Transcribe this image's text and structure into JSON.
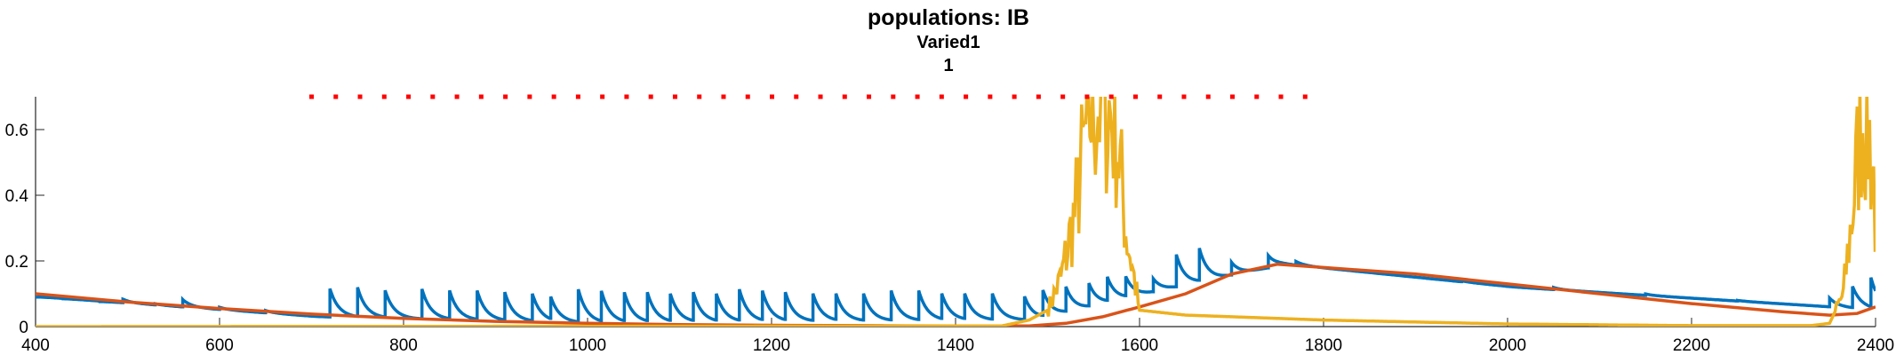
{
  "chart_data": {
    "type": "line",
    "title": "populations: IB",
    "subtitle_lines": [
      "Varied1",
      "1"
    ],
    "xlabel": "",
    "ylabel": "",
    "xlim": [
      400,
      2400
    ],
    "ylim": [
      0,
      0.7
    ],
    "x_ticks": [
      400,
      600,
      800,
      1000,
      1200,
      1400,
      1600,
      1800,
      2000,
      2200,
      2400
    ],
    "x_tick_labels": [
      "400",
      "600",
      "800",
      "1000",
      "1200",
      "1400",
      "1600",
      "1800",
      "2000",
      "2200",
      "2400"
    ],
    "y_ticks": [
      0,
      0.2,
      0.4,
      0.6
    ],
    "y_tick_labels": [
      "0",
      "0.2",
      "0.4",
      "0.6"
    ],
    "grid": false,
    "legend": "none",
    "series": [
      {
        "color": "#0072BD",
        "style": "spiky-line",
        "baseline": [
          [
            400,
            0.09
          ],
          [
            700,
            0.03
          ],
          [
            1000,
            0.01
          ],
          [
            1480,
            0.02
          ],
          [
            1600,
            0.1
          ],
          [
            1750,
            0.19
          ],
          [
            2000,
            0.12
          ],
          [
            2400,
            0.05
          ]
        ],
        "spikes": [
          [
            430,
            0.085
          ],
          [
            470,
            0.075
          ],
          [
            495,
            0.085
          ],
          [
            530,
            0.07
          ],
          [
            560,
            0.085
          ],
          [
            600,
            0.06
          ],
          [
            650,
            0.05
          ],
          [
            720,
            0.125
          ],
          [
            750,
            0.13
          ],
          [
            780,
            0.12
          ],
          [
            820,
            0.125
          ],
          [
            850,
            0.12
          ],
          [
            880,
            0.12
          ],
          [
            910,
            0.115
          ],
          [
            940,
            0.11
          ],
          [
            960,
            0.1
          ],
          [
            990,
            0.125
          ],
          [
            1015,
            0.12
          ],
          [
            1040,
            0.115
          ],
          [
            1065,
            0.115
          ],
          [
            1090,
            0.11
          ],
          [
            1115,
            0.115
          ],
          [
            1140,
            0.11
          ],
          [
            1165,
            0.125
          ],
          [
            1190,
            0.12
          ],
          [
            1215,
            0.115
          ],
          [
            1245,
            0.11
          ],
          [
            1270,
            0.11
          ],
          [
            1300,
            0.11
          ],
          [
            1330,
            0.12
          ],
          [
            1360,
            0.12
          ],
          [
            1385,
            0.11
          ],
          [
            1410,
            0.11
          ],
          [
            1440,
            0.11
          ],
          [
            1475,
            0.1
          ],
          [
            1495,
            0.12
          ],
          [
            1520,
            0.13
          ],
          [
            1545,
            0.14
          ],
          [
            1565,
            0.16
          ],
          [
            1585,
            0.16
          ],
          [
            1615,
            0.15
          ],
          [
            1640,
            0.23
          ],
          [
            1665,
            0.25
          ],
          [
            1700,
            0.2
          ],
          [
            1740,
            0.22
          ],
          [
            1770,
            0.2
          ],
          [
            1950,
            0.14
          ],
          [
            2050,
            0.12
          ],
          [
            2150,
            0.1
          ],
          [
            2250,
            0.08
          ],
          [
            2350,
            0.09
          ],
          [
            2375,
            0.13
          ],
          [
            2395,
            0.16
          ]
        ]
      },
      {
        "color": "#D95319",
        "style": "smooth-line",
        "points": [
          [
            400,
            0.1
          ],
          [
            500,
            0.075
          ],
          [
            600,
            0.055
          ],
          [
            700,
            0.038
          ],
          [
            800,
            0.025
          ],
          [
            900,
            0.016
          ],
          [
            1000,
            0.01
          ],
          [
            1100,
            0.006
          ],
          [
            1200,
            0.004
          ],
          [
            1300,
            0.003
          ],
          [
            1400,
            0.002
          ],
          [
            1480,
            0.002
          ],
          [
            1520,
            0.01
          ],
          [
            1560,
            0.03
          ],
          [
            1600,
            0.06
          ],
          [
            1650,
            0.1
          ],
          [
            1700,
            0.16
          ],
          [
            1750,
            0.19
          ],
          [
            1800,
            0.18
          ],
          [
            1900,
            0.16
          ],
          [
            2000,
            0.13
          ],
          [
            2100,
            0.1
          ],
          [
            2200,
            0.07
          ],
          [
            2300,
            0.045
          ],
          [
            2350,
            0.035
          ],
          [
            2380,
            0.04
          ],
          [
            2400,
            0.06
          ]
        ]
      },
      {
        "color": "#EDB120",
        "style": "noisy-line",
        "points": [
          [
            400,
            0.0
          ],
          [
            1450,
            0.002
          ],
          [
            1480,
            0.02
          ],
          [
            1500,
            0.05
          ],
          [
            1515,
            0.15
          ],
          [
            1530,
            0.35
          ],
          [
            1545,
            0.65
          ],
          [
            1560,
            0.7
          ],
          [
            1575,
            0.6
          ],
          [
            1585,
            0.3
          ],
          [
            1600,
            0.05
          ],
          [
            1650,
            0.035
          ],
          [
            1800,
            0.02
          ],
          [
            2000,
            0.008
          ],
          [
            2200,
            0.003
          ],
          [
            2330,
            0.003
          ],
          [
            2350,
            0.01
          ],
          [
            2365,
            0.1
          ],
          [
            2375,
            0.35
          ],
          [
            2385,
            0.65
          ],
          [
            2392,
            0.6
          ],
          [
            2398,
            0.45
          ],
          [
            2400,
            0.3
          ]
        ]
      },
      {
        "color": "#FF0000",
        "style": "dotted-line",
        "points": [
          [
            700,
            0.7
          ],
          [
            1780,
            0.7
          ]
        ]
      }
    ]
  }
}
